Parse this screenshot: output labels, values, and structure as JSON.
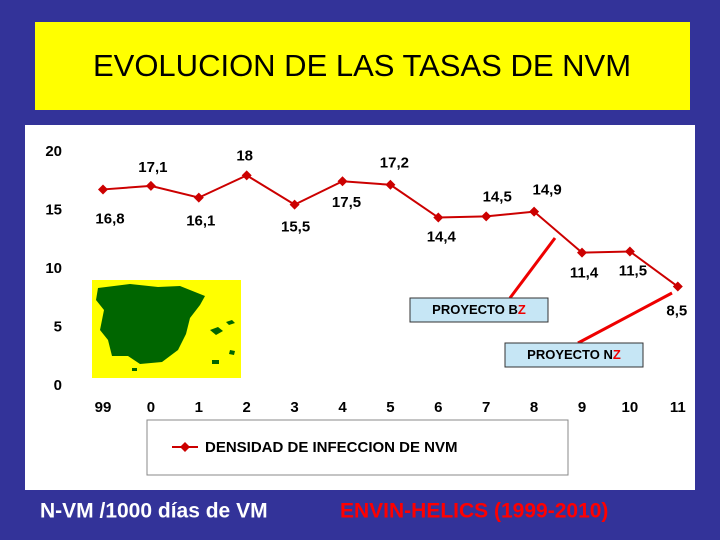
{
  "chart_data": {
    "type": "line",
    "title": "EVOLUCION DE LAS TASAS DE NVM",
    "categories": [
      "99",
      "0",
      "1",
      "2",
      "3",
      "4",
      "5",
      "6",
      "7",
      "8",
      "9",
      "10",
      "11"
    ],
    "series": [
      {
        "name": "DENSIDAD DE INFECCION DE NVM",
        "color": "#cc0000",
        "values": [
          16.8,
          17.1,
          16.1,
          18,
          15.5,
          17.5,
          17.2,
          14.4,
          14.5,
          14.9,
          11.4,
          11.5,
          8.5
        ],
        "value_labels": [
          "16,8",
          "17,1",
          "16,1",
          "18",
          "15,5",
          "17,5",
          "17,2",
          "14,4",
          "14,5",
          "14,9",
          "11,4",
          "11,5",
          "8,5"
        ]
      }
    ],
    "ylim": [
      0,
      20
    ],
    "yticks": [
      0,
      5,
      10,
      15,
      20
    ],
    "grid": false,
    "annotations": [
      {
        "text": "PROYECTO B",
        "emphasis": "Z"
      },
      {
        "text": "PROYECTO N",
        "emphasis": "Z"
      }
    ],
    "footer": {
      "text": "N-VM /1000 días de VM",
      "source": "ENVIN-HELICS (1999-2010)"
    }
  }
}
